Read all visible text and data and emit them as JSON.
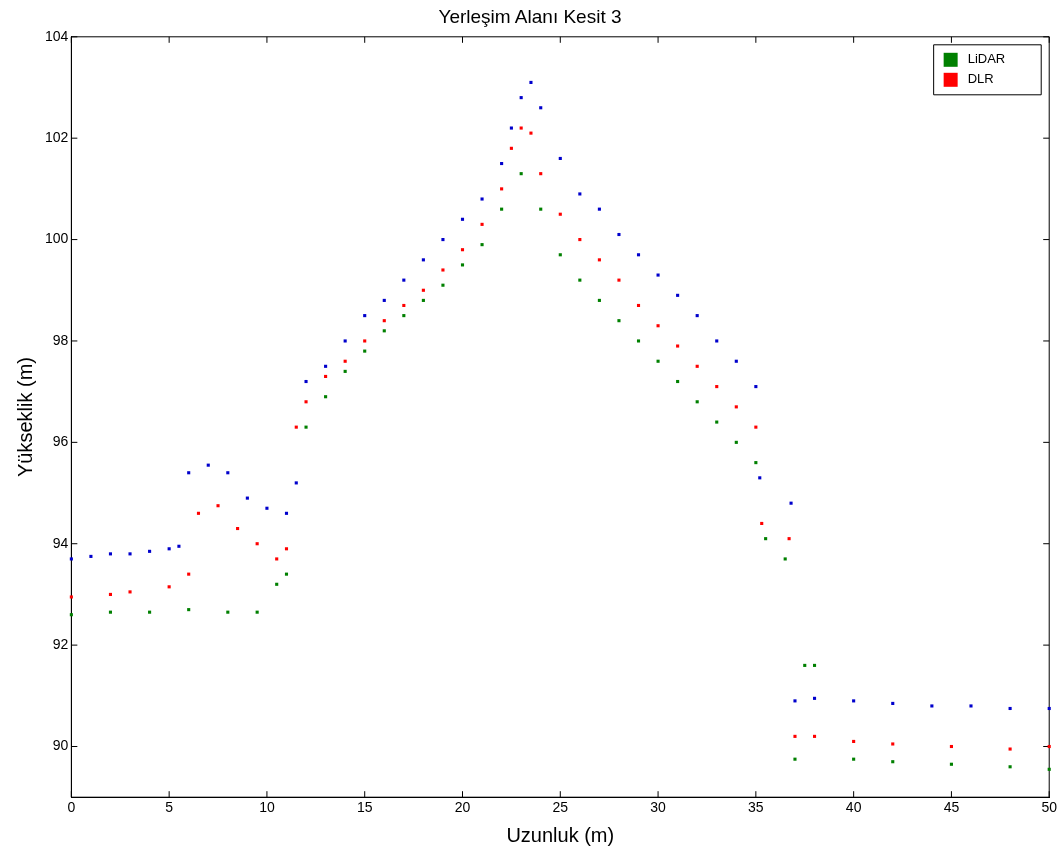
{
  "chart_data": {
    "type": "scatter",
    "title": "Yerleşim Alanı Kesit 3",
    "xlabel": "Uzunluk (m)",
    "ylabel": "Yükseklik (m)",
    "xlim": [
      0,
      50
    ],
    "xticks": [
      0,
      5,
      10,
      15,
      20,
      25,
      30,
      35,
      40,
      45,
      50
    ],
    "ylim": [
      89,
      104
    ],
    "yticks": [
      90,
      92,
      94,
      96,
      98,
      100,
      102,
      104
    ],
    "grid": false,
    "legend": "top right",
    "marker": "square",
    "series": [
      {
        "color": "#0000cc",
        "x": [
          0,
          1,
          2,
          3,
          4,
          5,
          5.5,
          6,
          7,
          8,
          9,
          10,
          11,
          11.5,
          12,
          13,
          14,
          15,
          16,
          17,
          18,
          19,
          20,
          21,
          22,
          22.5,
          23,
          23.5,
          24,
          25,
          26,
          27,
          28,
          29,
          30,
          31,
          32,
          33,
          34,
          35,
          35.2,
          36.8,
          37,
          38,
          40,
          42,
          44,
          46,
          48,
          50
        ],
        "values": [
          93.7,
          93.75,
          93.8,
          93.8,
          93.85,
          93.9,
          93.95,
          95.4,
          95.55,
          95.4,
          94.9,
          94.7,
          94.6,
          95.2,
          97.2,
          97.5,
          98.0,
          98.5,
          98.8,
          99.2,
          99.6,
          100.0,
          100.4,
          100.8,
          101.5,
          102.2,
          102.8,
          103.1,
          102.6,
          101.6,
          100.9,
          100.6,
          100.1,
          99.7,
          99.3,
          98.9,
          98.5,
          98.0,
          97.6,
          97.1,
          95.3,
          94.8,
          90.9,
          90.95,
          90.9,
          90.85,
          90.8,
          90.8,
          90.75,
          90.75
        ]
      },
      {
        "name": "LiDAR",
        "color": "#008000",
        "x": [
          0,
          2,
          4,
          6,
          8,
          9.5,
          10.5,
          11,
          12,
          13,
          14,
          15,
          16,
          17,
          18,
          19,
          20,
          21,
          22,
          23,
          24,
          25,
          26,
          27,
          28,
          29,
          30,
          31,
          32,
          33,
          34,
          35,
          35.5,
          36.5,
          37.5,
          38,
          37,
          40,
          42,
          45,
          48,
          50
        ],
        "values": [
          92.6,
          92.65,
          92.65,
          92.7,
          92.65,
          92.65,
          93.2,
          93.4,
          96.3,
          96.9,
          97.4,
          97.8,
          98.2,
          98.5,
          98.8,
          99.1,
          99.5,
          99.9,
          100.6,
          101.3,
          100.6,
          99.7,
          99.2,
          98.8,
          98.4,
          98.0,
          97.6,
          97.2,
          96.8,
          96.4,
          96.0,
          95.6,
          94.1,
          93.7,
          91.6,
          91.6,
          89.75,
          89.75,
          89.7,
          89.65,
          89.6,
          89.55
        ]
      },
      {
        "name": "DLR",
        "color": "#ff0000",
        "x": [
          0,
          2,
          3,
          5,
          6,
          6.5,
          7.5,
          8.5,
          9.5,
          10.5,
          11,
          11.5,
          12,
          13,
          14,
          15,
          16,
          17,
          18,
          19,
          20,
          21,
          22,
          22.5,
          23,
          23.5,
          24,
          25,
          26,
          27,
          28,
          29,
          30,
          31,
          32,
          33,
          34,
          35,
          35.3,
          36.7,
          37,
          38,
          40,
          42,
          45,
          48,
          50
        ],
        "values": [
          92.95,
          93.0,
          93.05,
          93.15,
          93.4,
          94.6,
          94.75,
          94.3,
          94.0,
          93.7,
          93.9,
          96.3,
          96.8,
          97.3,
          97.6,
          98.0,
          98.4,
          98.7,
          99.0,
          99.4,
          99.8,
          100.3,
          101.0,
          101.8,
          102.2,
          102.1,
          101.3,
          100.5,
          100.0,
          99.6,
          99.2,
          98.7,
          98.3,
          97.9,
          97.5,
          97.1,
          96.7,
          96.3,
          94.4,
          94.1,
          90.2,
          90.2,
          90.1,
          90.05,
          90.0,
          89.95,
          90.0
        ]
      }
    ]
  }
}
